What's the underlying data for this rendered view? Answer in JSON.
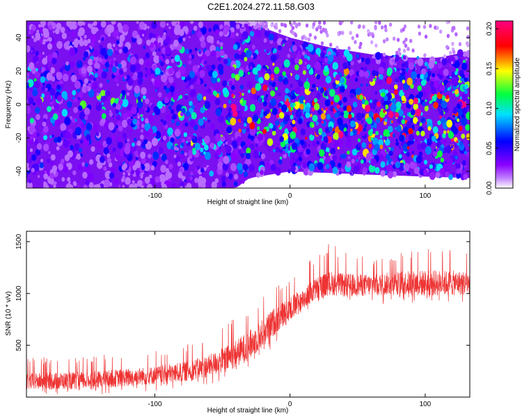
{
  "title": "C2E1.2024.272.11.58.G03",
  "chart_data": [
    {
      "type": "heatmap",
      "title": "C2E1.2024.272.11.58.G03",
      "xlabel": "Height of straight line (km)",
      "ylabel": "Frequency (Hz)",
      "xlim": [
        -195,
        133
      ],
      "ylim": [
        -50,
        50
      ],
      "xticks": [
        -100,
        0,
        100
      ],
      "yticks": [
        -40,
        -20,
        0,
        20,
        40
      ],
      "colorbar": {
        "label": "Normalized spectral amplitude",
        "range": [
          0.0,
          0.21
        ],
        "ticks": [
          0.0,
          0.05,
          0.1,
          0.15,
          0.2
        ],
        "colormap": [
          "#ffffff",
          "#8a00ff",
          "#0000ff",
          "#00e0ff",
          "#00ff40",
          "#ffff00",
          "#ff0000",
          "#ff0080"
        ]
      },
      "band_upper_hz": [
        [
          -195,
          50
        ],
        [
          -40,
          50
        ],
        [
          -30,
          48
        ],
        [
          -20,
          46
        ],
        [
          0,
          40
        ],
        [
          30,
          34
        ],
        [
          60,
          30
        ],
        [
          90,
          28
        ],
        [
          110,
          28
        ],
        [
          133,
          32
        ]
      ],
      "band_lower_hz": [
        [
          -195,
          -50
        ],
        [
          -40,
          -50
        ],
        [
          -30,
          -44
        ],
        [
          0,
          -40
        ],
        [
          60,
          -42
        ],
        [
          133,
          -44
        ]
      ],
      "intensity_profile": [
        [
          -195,
          0.05
        ],
        [
          -100,
          0.05
        ],
        [
          -80,
          0.07
        ],
        [
          -40,
          0.08
        ],
        [
          -20,
          0.1
        ],
        [
          0,
          0.11
        ],
        [
          40,
          0.11
        ],
        [
          80,
          0.12
        ],
        [
          133,
          0.11
        ]
      ]
    },
    {
      "type": "line",
      "xlabel": "Height of straight line (km)",
      "ylabel": "SNR (10 * v/v)",
      "xlim": [
        -195,
        133
      ],
      "ylim": [
        0,
        1600
      ],
      "xticks": [
        -100,
        0,
        100
      ],
      "yticks": [
        500,
        1000,
        1500
      ],
      "color": "#ee3333",
      "envelope": {
        "x": [
          -195,
          -150,
          -120,
          -100,
          -80,
          -60,
          -45,
          -30,
          -20,
          -10,
          0,
          10,
          20,
          30,
          40,
          60,
          80,
          100,
          133
        ],
        "min": [
          20,
          20,
          40,
          60,
          80,
          120,
          180,
          260,
          380,
          500,
          650,
          820,
          900,
          980,
          900,
          880,
          900,
          880,
          900
        ],
        "max": [
          380,
          400,
          420,
          450,
          500,
          600,
          750,
          900,
          1000,
          1100,
          1200,
          1300,
          1400,
          1500,
          1400,
          1350,
          1400,
          1450,
          1420
        ],
        "mean": [
          150,
          160,
          190,
          210,
          240,
          300,
          380,
          500,
          620,
          750,
          850,
          950,
          1050,
          1100,
          1080,
          1080,
          1100,
          1100,
          1100
        ]
      }
    }
  ]
}
